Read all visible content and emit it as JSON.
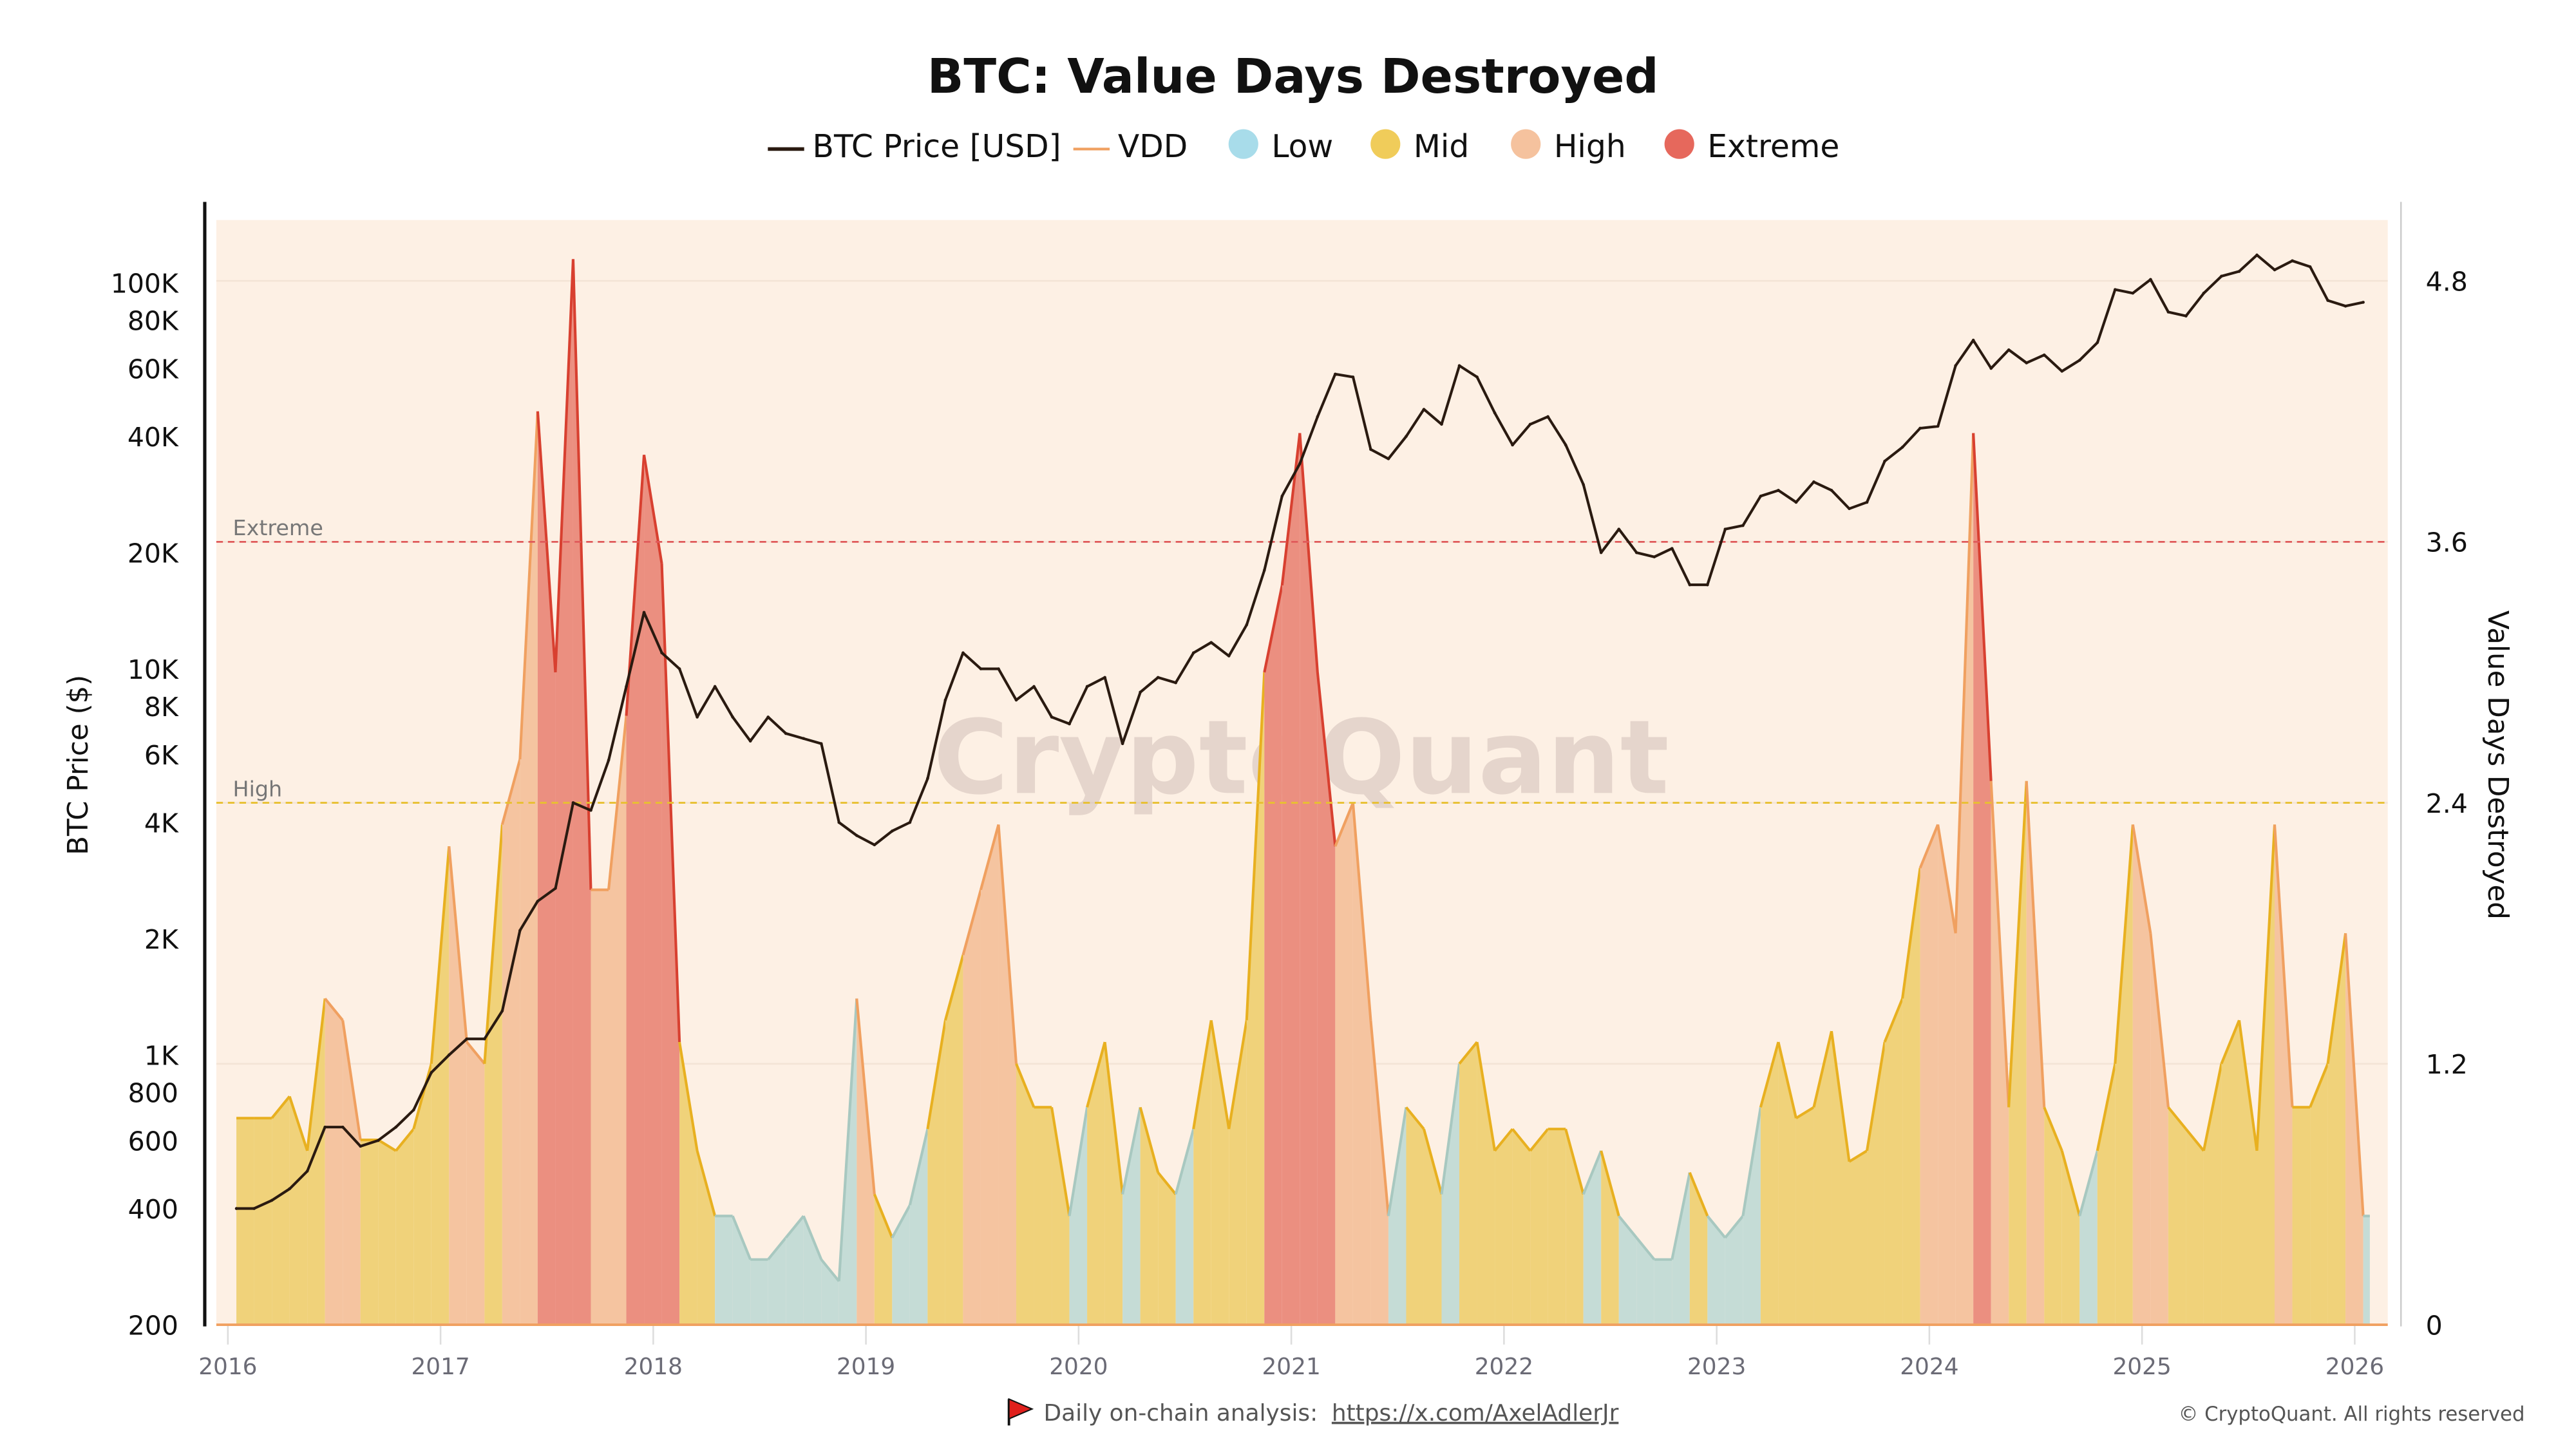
{
  "chart_data": {
    "type": "area",
    "title": "BTC: Value Days Destroyed",
    "legend": {
      "placement": "top",
      "entries": [
        "BTC Price [USD]",
        "VDD",
        "Low",
        "Mid",
        "High",
        "Extreme"
      ]
    },
    "ylabel_left": "BTC Price ($)",
    "ylabel_right": "Value Days Destroyed",
    "y_left_scale": "log",
    "y_left_range": [
      200,
      145000
    ],
    "y_right_range": [
      0,
      5.08
    ],
    "x_range": [
      "2016-01",
      "2026-02"
    ],
    "x_ticks": [
      "2016",
      "2017",
      "2018",
      "2019",
      "2020",
      "2021",
      "2022",
      "2023",
      "2024",
      "2025",
      "2026"
    ],
    "y_left_ticks": [
      "100K",
      "80K",
      "60K",
      "40K",
      "20K",
      "10K",
      "8K",
      "6K",
      "4K",
      "2K",
      "1K",
      "800",
      "600",
      "400",
      "200"
    ],
    "y_left_tick_values": [
      100000,
      80000,
      60000,
      40000,
      20000,
      10000,
      8000,
      6000,
      4000,
      2000,
      1000,
      800,
      600,
      400,
      200
    ],
    "y_right_ticks": [
      "0",
      "1.2",
      "2.4",
      "3.6",
      "4.8"
    ],
    "y_right_tick_values": [
      0,
      1.2,
      2.4,
      3.6,
      4.8
    ],
    "grid": true,
    "thresholds": [
      {
        "label": "Extreme",
        "value": 3.6,
        "color": "#e05a5a"
      },
      {
        "label": "High",
        "value": 2.4,
        "color": "#e8c030"
      }
    ],
    "zone_colors": {
      "low": "#a8dcea",
      "mid": "#f0cc5a",
      "high": "#f5c29e",
      "extreme": "#e6685c"
    },
    "zone_fill": {
      "low": "#c5dcd6",
      "mid": "#f0d27a",
      "high": "#f5c4a0",
      "extreme": "#eb8f80"
    },
    "zone_stroke": {
      "low": "#a8c8c0",
      "mid": "#e8b020",
      "high": "#f0a060",
      "extreme": "#d84030"
    },
    "price_color": "#2a1a10",
    "vdd_color": "#f0a060",
    "background_color": "#fdf0e4",
    "dates": [
      "2016-01",
      "2016-02",
      "2016-03",
      "2016-04",
      "2016-05",
      "2016-06",
      "2016-07",
      "2016-08",
      "2016-09",
      "2016-10",
      "2016-11",
      "2016-12",
      "2017-01",
      "2017-02",
      "2017-03",
      "2017-04",
      "2017-05",
      "2017-06",
      "2017-07",
      "2017-08",
      "2017-09",
      "2017-10",
      "2017-11",
      "2017-12",
      "2018-01",
      "2018-02",
      "2018-03",
      "2018-04",
      "2018-05",
      "2018-06",
      "2018-07",
      "2018-08",
      "2018-09",
      "2018-10",
      "2018-11",
      "2018-12",
      "2019-01",
      "2019-02",
      "2019-03",
      "2019-04",
      "2019-05",
      "2019-06",
      "2019-07",
      "2019-08",
      "2019-09",
      "2019-10",
      "2019-11",
      "2019-12",
      "2020-01",
      "2020-02",
      "2020-03",
      "2020-04",
      "2020-05",
      "2020-06",
      "2020-07",
      "2020-08",
      "2020-09",
      "2020-10",
      "2020-11",
      "2020-12",
      "2021-01",
      "2021-02",
      "2021-03",
      "2021-04",
      "2021-05",
      "2021-06",
      "2021-07",
      "2021-08",
      "2021-09",
      "2021-10",
      "2021-11",
      "2021-12",
      "2022-01",
      "2022-02",
      "2022-03",
      "2022-04",
      "2022-05",
      "2022-06",
      "2022-07",
      "2022-08",
      "2022-09",
      "2022-10",
      "2022-11",
      "2022-12",
      "2023-01",
      "2023-02",
      "2023-03",
      "2023-04",
      "2023-05",
      "2023-06",
      "2023-07",
      "2023-08",
      "2023-09",
      "2023-10",
      "2023-11",
      "2023-12",
      "2024-01",
      "2024-02",
      "2024-03",
      "2024-04",
      "2024-05",
      "2024-06",
      "2024-07",
      "2024-08",
      "2024-09",
      "2024-10",
      "2024-11",
      "2024-12",
      "2025-01",
      "2025-02",
      "2025-03",
      "2025-04",
      "2025-05",
      "2025-06",
      "2025-07",
      "2025-08",
      "2025-09",
      "2025-10",
      "2025-11",
      "2025-12",
      "2026-01"
    ],
    "series": [
      {
        "name": "BTC Price [USD]",
        "axis": "left",
        "values": [
          400,
          400,
          420,
          450,
          500,
          650,
          650,
          580,
          600,
          650,
          720,
          900,
          1000,
          1100,
          1100,
          1300,
          2100,
          2500,
          2700,
          4500,
          4300,
          5800,
          9000,
          14000,
          11000,
          10000,
          7500,
          9000,
          7500,
          6500,
          7500,
          6800,
          6600,
          6400,
          4000,
          3700,
          3500,
          3800,
          4000,
          5200,
          8300,
          11000,
          10000,
          10000,
          8300,
          9000,
          7500,
          7200,
          9000,
          9500,
          6400,
          8700,
          9500,
          9200,
          11000,
          11700,
          10800,
          13000,
          18000,
          28000,
          34000,
          45000,
          58000,
          57000,
          37000,
          35000,
          40000,
          47000,
          43000,
          61000,
          57000,
          46000,
          38000,
          43000,
          45000,
          38000,
          30000,
          20000,
          23000,
          20000,
          19500,
          20500,
          16500,
          16500,
          23000,
          23500,
          28000,
          29000,
          27000,
          30500,
          29000,
          26000,
          27000,
          34500,
          37500,
          42000,
          42500,
          61000,
          71000,
          60000,
          67000,
          62000,
          65000,
          59000,
          63000,
          70000,
          96000,
          94000,
          102000,
          84000,
          82000,
          94000,
          104000,
          107000,
          118000,
          108000,
          114000,
          110000,
          90000,
          87000,
          89000
        ]
      },
      {
        "name": "VDD",
        "axis": "right",
        "values": [
          0.95,
          0.95,
          0.95,
          1.05,
          0.8,
          1.5,
          1.4,
          0.85,
          0.85,
          0.8,
          0.9,
          1.2,
          2.2,
          1.3,
          1.2,
          2.3,
          2.6,
          4.2,
          3.0,
          4.9,
          2.0,
          2.0,
          2.8,
          4.0,
          3.5,
          1.3,
          0.8,
          0.5,
          0.5,
          0.3,
          0.3,
          0.4,
          0.5,
          0.3,
          0.2,
          1.5,
          0.6,
          0.4,
          0.55,
          0.9,
          1.4,
          1.7,
          2.0,
          2.3,
          1.2,
          1.0,
          1.0,
          0.5,
          1.0,
          1.3,
          0.6,
          1.0,
          0.7,
          0.6,
          0.9,
          1.4,
          0.9,
          1.4,
          3.0,
          3.4,
          4.1,
          3.0,
          2.2,
          2.4,
          1.4,
          0.5,
          1.0,
          0.9,
          0.6,
          1.2,
          1.3,
          0.8,
          0.9,
          0.8,
          0.9,
          0.9,
          0.6,
          0.8,
          0.5,
          0.4,
          0.3,
          0.3,
          0.7,
          0.5,
          0.4,
          0.5,
          1.0,
          1.3,
          0.95,
          1.0,
          1.35,
          0.75,
          0.8,
          1.3,
          1.5,
          2.1,
          2.3,
          1.8,
          4.1,
          2.5,
          1.0,
          2.5,
          1.0,
          0.8,
          0.5,
          0.8,
          1.2,
          2.3,
          1.8,
          1.0,
          0.9,
          0.8,
          1.2,
          1.4,
          0.8,
          2.3,
          1.0,
          1.0,
          1.2,
          1.8,
          0.5
        ],
        "zones": [
          "mid",
          "mid",
          "mid",
          "mid",
          "mid",
          "high",
          "high",
          "mid",
          "mid",
          "mid",
          "mid",
          "mid",
          "high",
          "high",
          "mid",
          "high",
          "high",
          "extreme",
          "extreme",
          "extreme",
          "high",
          "high",
          "extreme",
          "extreme",
          "extreme",
          "mid",
          "mid",
          "low",
          "low",
          "low",
          "low",
          "low",
          "low",
          "low",
          "low",
          "high",
          "mid",
          "low",
          "low",
          "mid",
          "mid",
          "high",
          "high",
          "high",
          "mid",
          "mid",
          "mid",
          "low",
          "mid",
          "mid",
          "low",
          "mid",
          "mid",
          "low",
          "mid",
          "mid",
          "mid",
          "mid",
          "extreme",
          "extreme",
          "extreme",
          "extreme",
          "high",
          "high",
          "high",
          "low",
          "mid",
          "mid",
          "low",
          "mid",
          "mid",
          "mid",
          "mid",
          "mid",
          "mid",
          "mid",
          "low",
          "mid",
          "low",
          "low",
          "low",
          "low",
          "mid",
          "low",
          "low",
          "low",
          "mid",
          "mid",
          "mid",
          "mid",
          "mid",
          "mid",
          "mid",
          "mid",
          "mid",
          "high",
          "high",
          "high",
          "extreme",
          "high",
          "mid",
          "high",
          "mid",
          "mid",
          "low",
          "mid",
          "mid",
          "high",
          "high",
          "mid",
          "mid",
          "mid",
          "mid",
          "mid",
          "mid",
          "high",
          "mid",
          "mid",
          "mid",
          "high",
          "low"
        ]
      }
    ]
  },
  "watermark": "CryptoQuant",
  "footer": {
    "analysis_label": "Daily on-chain analysis:",
    "analysis_link": "https://x.com/AxelAdlerJr",
    "copyright": "© CryptoQuant. All rights reserved",
    "flag_icon": "red-flag-icon"
  }
}
